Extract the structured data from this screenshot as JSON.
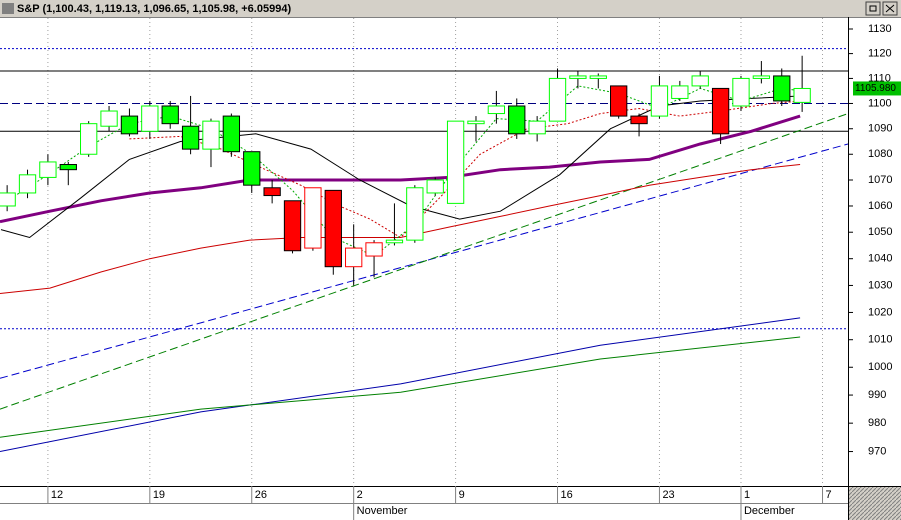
{
  "chart_data": {
    "type": "candlestick",
    "title": "S&P (1,100.43, 1,119.13, 1,096.65, 1,105.98, +6.05994)",
    "log_scale": true,
    "grid": true,
    "xlim": [
      -0.35,
      41.25
    ],
    "ylim": [
      958,
      1134.5
    ],
    "yticks": [
      970,
      980,
      990,
      1000,
      1010,
      1020,
      1030,
      1040,
      1050,
      1060,
      1070,
      1080,
      1090,
      1100,
      1110,
      1120,
      1130
    ],
    "xticks": [
      {
        "value": 2,
        "label": "12"
      },
      {
        "value": 7,
        "label": "19"
      },
      {
        "value": 12,
        "label": "26"
      },
      {
        "value": 17,
        "label": "2"
      },
      {
        "value": 22,
        "label": "9"
      },
      {
        "value": 27,
        "label": "16"
      },
      {
        "value": 32,
        "label": "23"
      },
      {
        "value": 36,
        "label": "1"
      },
      {
        "value": 40,
        "label": "7"
      }
    ],
    "month_labels": [
      {
        "value": 17,
        "label": "November"
      },
      {
        "value": 36,
        "label": "December"
      }
    ],
    "x": [
      0,
      1,
      2,
      3,
      4,
      5,
      6,
      7,
      8,
      9,
      10,
      11,
      12,
      13,
      14,
      15,
      16,
      17,
      18,
      19,
      20,
      21,
      22,
      23,
      24,
      25,
      26,
      27,
      28,
      29,
      30,
      31,
      32,
      33,
      34,
      35,
      36,
      37,
      38,
      39
    ],
    "open": [
      1060,
      1065,
      1071,
      1076,
      1080,
      1091,
      1095,
      1089,
      1099,
      1091,
      1082,
      1095,
      1081,
      1067,
      1062,
      1044,
      1066,
      1037,
      1041,
      1046,
      1047,
      1065,
      1061,
      1092,
      1096,
      1099,
      1088,
      1093,
      1110,
      1110,
      1107,
      1095,
      1095,
      1102,
      1107,
      1106,
      1099,
      1110,
      1111,
      1100.43
    ],
    "high": [
      1068,
      1074,
      1080,
      1077,
      1093,
      1099,
      1098,
      1101,
      1101,
      1103,
      1094,
      1096,
      1081,
      1070,
      1062,
      1067,
      1066,
      1053,
      1047,
      1061,
      1068,
      1071,
      1093,
      1095,
      1105,
      1102,
      1095,
      1114,
      1113,
      1112,
      1107,
      1096,
      1111,
      1109,
      1113,
      1106,
      1111,
      1117,
      1114,
      1119.13
    ],
    "low": [
      1058,
      1063,
      1068,
      1068,
      1079,
      1089,
      1087,
      1086,
      1090,
      1080,
      1075,
      1079,
      1065,
      1061,
      1042,
      1043,
      1034,
      1030,
      1033,
      1045,
      1046,
      1064,
      1061,
      1085,
      1092,
      1086,
      1085,
      1093,
      1106,
      1106,
      1094,
      1087,
      1094,
      1101,
      1106,
      1084,
      1097,
      1108,
      1099,
      1096.65
    ],
    "close": [
      1065,
      1072,
      1077,
      1074,
      1092,
      1097,
      1088,
      1099,
      1092,
      1082,
      1093,
      1081,
      1068,
      1064,
      1043,
      1067,
      1037,
      1044,
      1046,
      1047,
      1067,
      1070,
      1093,
      1093,
      1099,
      1088,
      1093,
      1110,
      1111,
      1111,
      1095,
      1092,
      1107,
      1107,
      1111,
      1088,
      1110,
      1111,
      1101,
      1105.98
    ],
    "candle_colors": [
      "#00ff00",
      "#00ff00",
      "#00ff00",
      "#00ff00",
      "#00ff00",
      "#00ff00",
      "#00ff00",
      "#00ff00",
      "#00ff00",
      "#00ff00",
      "#00ff00",
      "#00ff00",
      "#00ff00",
      "#ff0000",
      "#ff0000",
      "#ff0000",
      "#ff0000",
      "#ff0000",
      "#ff0000",
      "#00ff00",
      "#00ff00",
      "#00ff00",
      "#00ff00",
      "#00ff00",
      "#00ff00",
      "#00ff00",
      "#00ff00",
      "#00ff00",
      "#00ff00",
      "#00ff00",
      "#ff0000",
      "#ff0000",
      "#00ff00",
      "#00ff00",
      "#00ff00",
      "#ff0000",
      "#00ff00",
      "#00ff00",
      "#00ff00",
      "#00ff00"
    ],
    "hlines": [
      {
        "value": 1122,
        "color": "#0000cc",
        "style": "dotted",
        "width": 1
      },
      {
        "value": 1113,
        "color": "#000000",
        "style": "solid",
        "width": 1
      },
      {
        "value": 1100,
        "color": "#000080",
        "style": "dashed",
        "width": 1
      },
      {
        "value": 1089,
        "color": "#000000",
        "style": "solid",
        "width": 1
      },
      {
        "value": 1014,
        "color": "#0000cc",
        "style": "dotted",
        "width": 1
      }
    ],
    "lines": [
      {
        "color": "#0000cc",
        "style": "dashed",
        "width": 1,
        "x": [
          -0.35,
          41.25
        ],
        "values": [
          996,
          1084
        ]
      },
      {
        "color": "#008000",
        "style": "dashed",
        "width": 1,
        "x": [
          -0.35,
          41.25
        ],
        "values": [
          985,
          1096
        ]
      },
      {
        "color": "#0000aa",
        "style": "solid",
        "width": 1,
        "x": [
          -0.35,
          9.5,
          19.3,
          29.1,
          38.9
        ],
        "values": [
          970,
          984,
          994,
          1008,
          1018
        ]
      },
      {
        "color": "#008000",
        "style": "solid",
        "width": 1,
        "x": [
          -0.35,
          9.5,
          19.3,
          29.1,
          38.9
        ],
        "values": [
          975,
          985,
          991,
          1003,
          1011
        ]
      },
      {
        "color": "#cc0000",
        "style": "solid",
        "width": 1,
        "x": [
          -0.35,
          2.1,
          4.6,
          7.0,
          9.5,
          11.9,
          14.4,
          19.3,
          21.7,
          24.2,
          26.6,
          29.1,
          31.5,
          34.0,
          36.5,
          38.9
        ],
        "values": [
          1027,
          1029,
          1035,
          1040,
          1044,
          1047,
          1048,
          1048,
          1052,
          1056,
          1060,
          1064,
          1068,
          1071,
          1074,
          1076
        ]
      },
      {
        "color": "#800080",
        "style": "solid",
        "width": 3,
        "x": [
          -0.35,
          2.1,
          4.6,
          7.0,
          9.5,
          11.9,
          14.4,
          16.8,
          19.3,
          21.7,
          24.2,
          26.6,
          29.1,
          31.5,
          34.0,
          36.5,
          38.9
        ],
        "values": [
          1054,
          1058,
          1062,
          1065,
          1067,
          1070,
          1070,
          1070,
          1070,
          1071,
          1074,
          1075,
          1077,
          1078,
          1084,
          1089,
          1095
        ]
      },
      {
        "color": "#000000",
        "style": "solid",
        "width": 1,
        "x": [
          -0.3,
          1.1,
          3.6,
          6.0,
          8.5,
          12.2,
          14.9,
          17.3,
          19.8,
          22.2,
          24.2,
          27.1,
          29.6,
          32.0,
          34.0,
          36.5,
          39.0
        ],
        "values": [
          1051,
          1048,
          1063,
          1078,
          1085,
          1088,
          1082,
          1070,
          1060,
          1055,
          1058,
          1072,
          1090,
          1099,
          1101,
          1102,
          1103
        ]
      },
      {
        "color": "#cc0000",
        "style": "dotted",
        "width": 1,
        "x": [
          6,
          8.5,
          10.5,
          12.4,
          14.4,
          16.3,
          17.8,
          19.3,
          21.2,
          23.2,
          25.5,
          27.5,
          29.1,
          31.0,
          33.0,
          35.0,
          37.5,
          39.0
        ],
        "values": [
          1086,
          1087,
          1082,
          1075,
          1068,
          1060,
          1055,
          1048,
          1063,
          1080,
          1090,
          1092,
          1096,
          1098,
          1095,
          1097,
          1100,
          1101
        ]
      },
      {
        "color": "#00aa00",
        "style": "dotted",
        "width": 1,
        "x": [
          0,
          2,
          4,
          6,
          8,
          10,
          12,
          14,
          16,
          18,
          20,
          22,
          24,
          26,
          28,
          30,
          32,
          34,
          36,
          38,
          39
        ],
        "values": [
          1062,
          1072,
          1083,
          1092,
          1095,
          1090,
          1080,
          1066,
          1048,
          1041,
          1053,
          1075,
          1094,
          1093,
          1107,
          1104,
          1098,
          1106,
          1101,
          1106,
          1105
        ]
      }
    ],
    "last_price": {
      "value": 1105.98,
      "label": "1105.980",
      "color": "#00c000"
    }
  }
}
